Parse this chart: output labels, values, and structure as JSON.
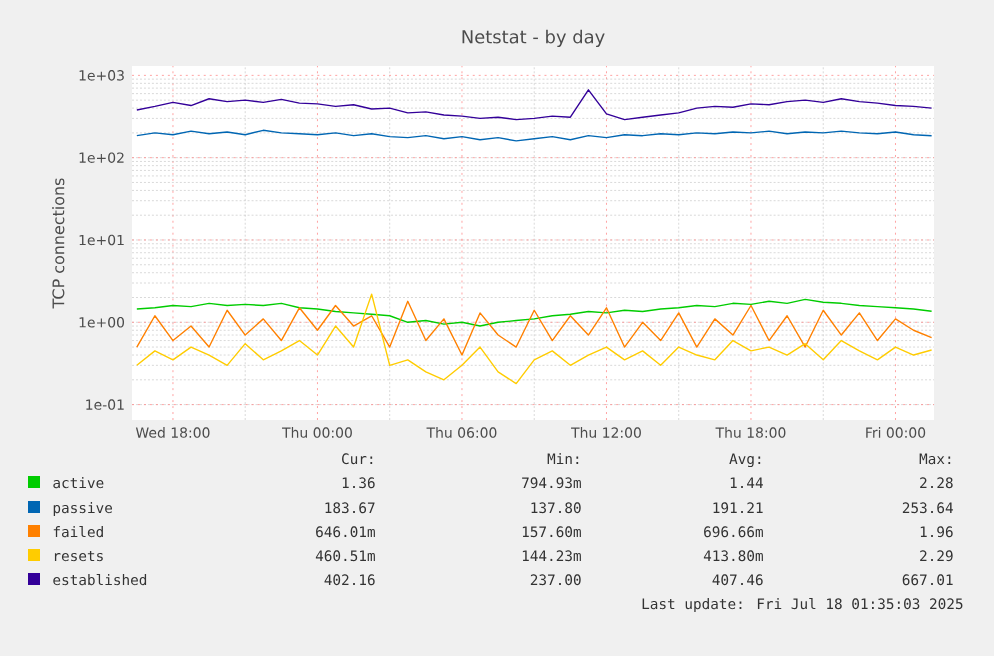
{
  "chart_data": {
    "type": "line",
    "title": "Netstat - by day",
    "ylabel": "TCP connections",
    "log": "y",
    "grid": true,
    "legend": "bottom",
    "marker": "none",
    "line_style": "solid",
    "xlim": [
      "2025-07-16T16:18",
      "2025-07-18T01:36"
    ],
    "ylim": [
      0.065,
      1300
    ],
    "xticks": [
      {
        "value": "2025-07-16T18:00",
        "label": "Wed 18:00"
      },
      {
        "value": "2025-07-17T00:00",
        "label": "Thu 00:00"
      },
      {
        "value": "2025-07-17T06:00",
        "label": "Thu 06:00"
      },
      {
        "value": "2025-07-17T12:00",
        "label": "Thu 12:00"
      },
      {
        "value": "2025-07-17T18:00",
        "label": "Thu 18:00"
      },
      {
        "value": "2025-07-18T00:00",
        "label": "Fri 00:00"
      }
    ],
    "yticks": [
      {
        "value": 0.1,
        "label": "1e-01"
      },
      {
        "value": 1,
        "label": "1e+00"
      },
      {
        "value": 10,
        "label": "1e+01"
      },
      {
        "value": 100,
        "label": "1e+02"
      },
      {
        "value": 1000,
        "label": "1e+03"
      }
    ],
    "x": [
      "2025-07-16T16:30",
      "2025-07-16T17:15",
      "2025-07-16T18:00",
      "2025-07-16T18:45",
      "2025-07-16T19:30",
      "2025-07-16T20:15",
      "2025-07-16T21:00",
      "2025-07-16T21:45",
      "2025-07-16T22:30",
      "2025-07-16T23:15",
      "2025-07-17T00:00",
      "2025-07-17T00:45",
      "2025-07-17T01:30",
      "2025-07-17T02:15",
      "2025-07-17T03:00",
      "2025-07-17T03:45",
      "2025-07-17T04:30",
      "2025-07-17T05:15",
      "2025-07-17T06:00",
      "2025-07-17T06:45",
      "2025-07-17T07:30",
      "2025-07-17T08:15",
      "2025-07-17T09:00",
      "2025-07-17T09:45",
      "2025-07-17T10:30",
      "2025-07-17T11:15",
      "2025-07-17T12:00",
      "2025-07-17T12:45",
      "2025-07-17T13:30",
      "2025-07-17T14:15",
      "2025-07-17T15:00",
      "2025-07-17T15:45",
      "2025-07-17T16:30",
      "2025-07-17T17:15",
      "2025-07-17T18:00",
      "2025-07-17T18:45",
      "2025-07-17T19:30",
      "2025-07-17T20:15",
      "2025-07-17T21:00",
      "2025-07-17T21:45",
      "2025-07-17T22:30",
      "2025-07-17T23:15",
      "2025-07-18T00:00",
      "2025-07-18T00:45",
      "2025-07-18T01:30"
    ],
    "series": [
      {
        "name": "active",
        "color": "#00cc00",
        "values": [
          1.45,
          1.5,
          1.6,
          1.55,
          1.7,
          1.6,
          1.65,
          1.6,
          1.7,
          1.5,
          1.45,
          1.35,
          1.3,
          1.25,
          1.2,
          1.0,
          1.05,
          0.95,
          1.0,
          0.9,
          1.0,
          1.05,
          1.1,
          1.2,
          1.25,
          1.35,
          1.3,
          1.4,
          1.35,
          1.45,
          1.5,
          1.6,
          1.55,
          1.7,
          1.65,
          1.8,
          1.7,
          1.9,
          1.75,
          1.7,
          1.6,
          1.55,
          1.5,
          1.45,
          1.36
        ]
      },
      {
        "name": "passive",
        "color": "#0066b3",
        "values": [
          185,
          200,
          190,
          210,
          195,
          205,
          190,
          215,
          200,
          195,
          190,
          200,
          185,
          195,
          180,
          175,
          185,
          170,
          180,
          165,
          175,
          160,
          170,
          180,
          165,
          185,
          175,
          190,
          185,
          195,
          190,
          200,
          195,
          205,
          200,
          210,
          195,
          205,
          200,
          210,
          200,
          195,
          205,
          190,
          185
        ]
      },
      {
        "name": "failed",
        "color": "#ff8000",
        "values": [
          0.5,
          1.2,
          0.6,
          0.9,
          0.5,
          1.4,
          0.7,
          1.1,
          0.6,
          1.5,
          0.8,
          1.6,
          0.9,
          1.2,
          0.5,
          1.8,
          0.6,
          1.1,
          0.4,
          1.3,
          0.7,
          0.5,
          1.4,
          0.6,
          1.2,
          0.7,
          1.5,
          0.5,
          1.0,
          0.6,
          1.3,
          0.5,
          1.1,
          0.7,
          1.6,
          0.6,
          1.2,
          0.5,
          1.4,
          0.7,
          1.3,
          0.6,
          1.1,
          0.8,
          0.65
        ]
      },
      {
        "name": "resets",
        "color": "#ffcc00",
        "values": [
          0.3,
          0.45,
          0.35,
          0.5,
          0.4,
          0.3,
          0.55,
          0.35,
          0.45,
          0.6,
          0.4,
          0.9,
          0.5,
          2.2,
          0.3,
          0.35,
          0.25,
          0.2,
          0.3,
          0.5,
          0.25,
          0.18,
          0.35,
          0.45,
          0.3,
          0.4,
          0.5,
          0.35,
          0.45,
          0.3,
          0.5,
          0.4,
          0.35,
          0.6,
          0.45,
          0.5,
          0.4,
          0.55,
          0.35,
          0.6,
          0.45,
          0.35,
          0.5,
          0.4,
          0.46
        ]
      },
      {
        "name": "established",
        "color": "#330099",
        "values": [
          380,
          420,
          470,
          430,
          520,
          480,
          500,
          470,
          510,
          460,
          450,
          420,
          440,
          390,
          400,
          350,
          360,
          330,
          320,
          300,
          310,
          290,
          300,
          320,
          310,
          667,
          340,
          290,
          310,
          330,
          350,
          400,
          420,
          410,
          450,
          440,
          480,
          500,
          470,
          520,
          480,
          460,
          430,
          420,
          400
        ]
      }
    ],
    "annotations": [
      "Cur:",
      "Min:",
      "Avg:",
      "Max:",
      "1.36",
      "794.93m",
      "1.44",
      "2.28",
      "183.67",
      "137.80",
      "191.21",
      "253.64",
      "646.01m",
      "157.60m",
      "696.66m",
      "1.96",
      "460.51m",
      "144.23m",
      "413.80m",
      "2.29",
      "402.16",
      "237.00",
      "407.46",
      "667.01",
      "Last update: Fri Jul 18 01:35:03 2025"
    ]
  }
}
